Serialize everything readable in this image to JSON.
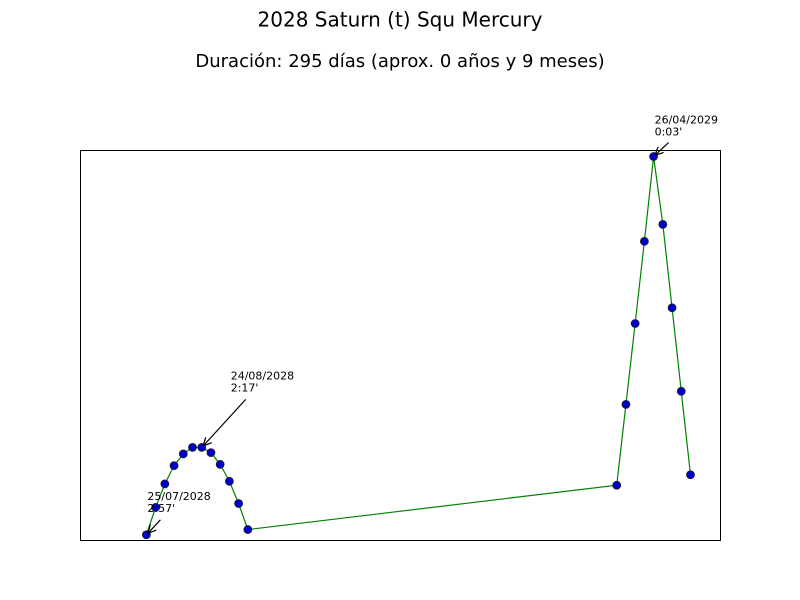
{
  "chart_data": {
    "type": "line",
    "title": "2028 Saturn (t) Squ Mercury",
    "subtitle": "Duración: 295 días (aprox. 0 años y 9 meses)",
    "x": [
      0,
      5,
      10,
      15,
      20,
      25,
      30,
      35,
      40,
      45,
      50,
      55,
      255,
      260,
      265,
      270,
      275,
      280,
      285,
      290,
      295
    ],
    "series": [
      {
        "color": "green",
        "marker_color": "#0000cc",
        "values": [
          2.95,
          2.74,
          2.56,
          2.42,
          2.33,
          2.28,
          2.28,
          2.32,
          2.41,
          2.54,
          2.71,
          2.91,
          2.57,
          1.95,
          1.33,
          0.7,
          0.05,
          0.57,
          1.21,
          1.85,
          2.49
        ]
      }
    ],
    "xlim": [
      -36,
      311
    ],
    "ylim": [
      2.99,
      0
    ],
    "annotations": [
      {
        "date": "25/07/2028",
        "label": "2:57'",
        "x": 0,
        "y": 2.95
      },
      {
        "date": "24/08/2028",
        "label": "2:17'",
        "x": 30,
        "y": 2.28
      },
      {
        "date": "26/04/2029",
        "label": "0:03'",
        "x": 275,
        "y": 0.05
      }
    ]
  }
}
